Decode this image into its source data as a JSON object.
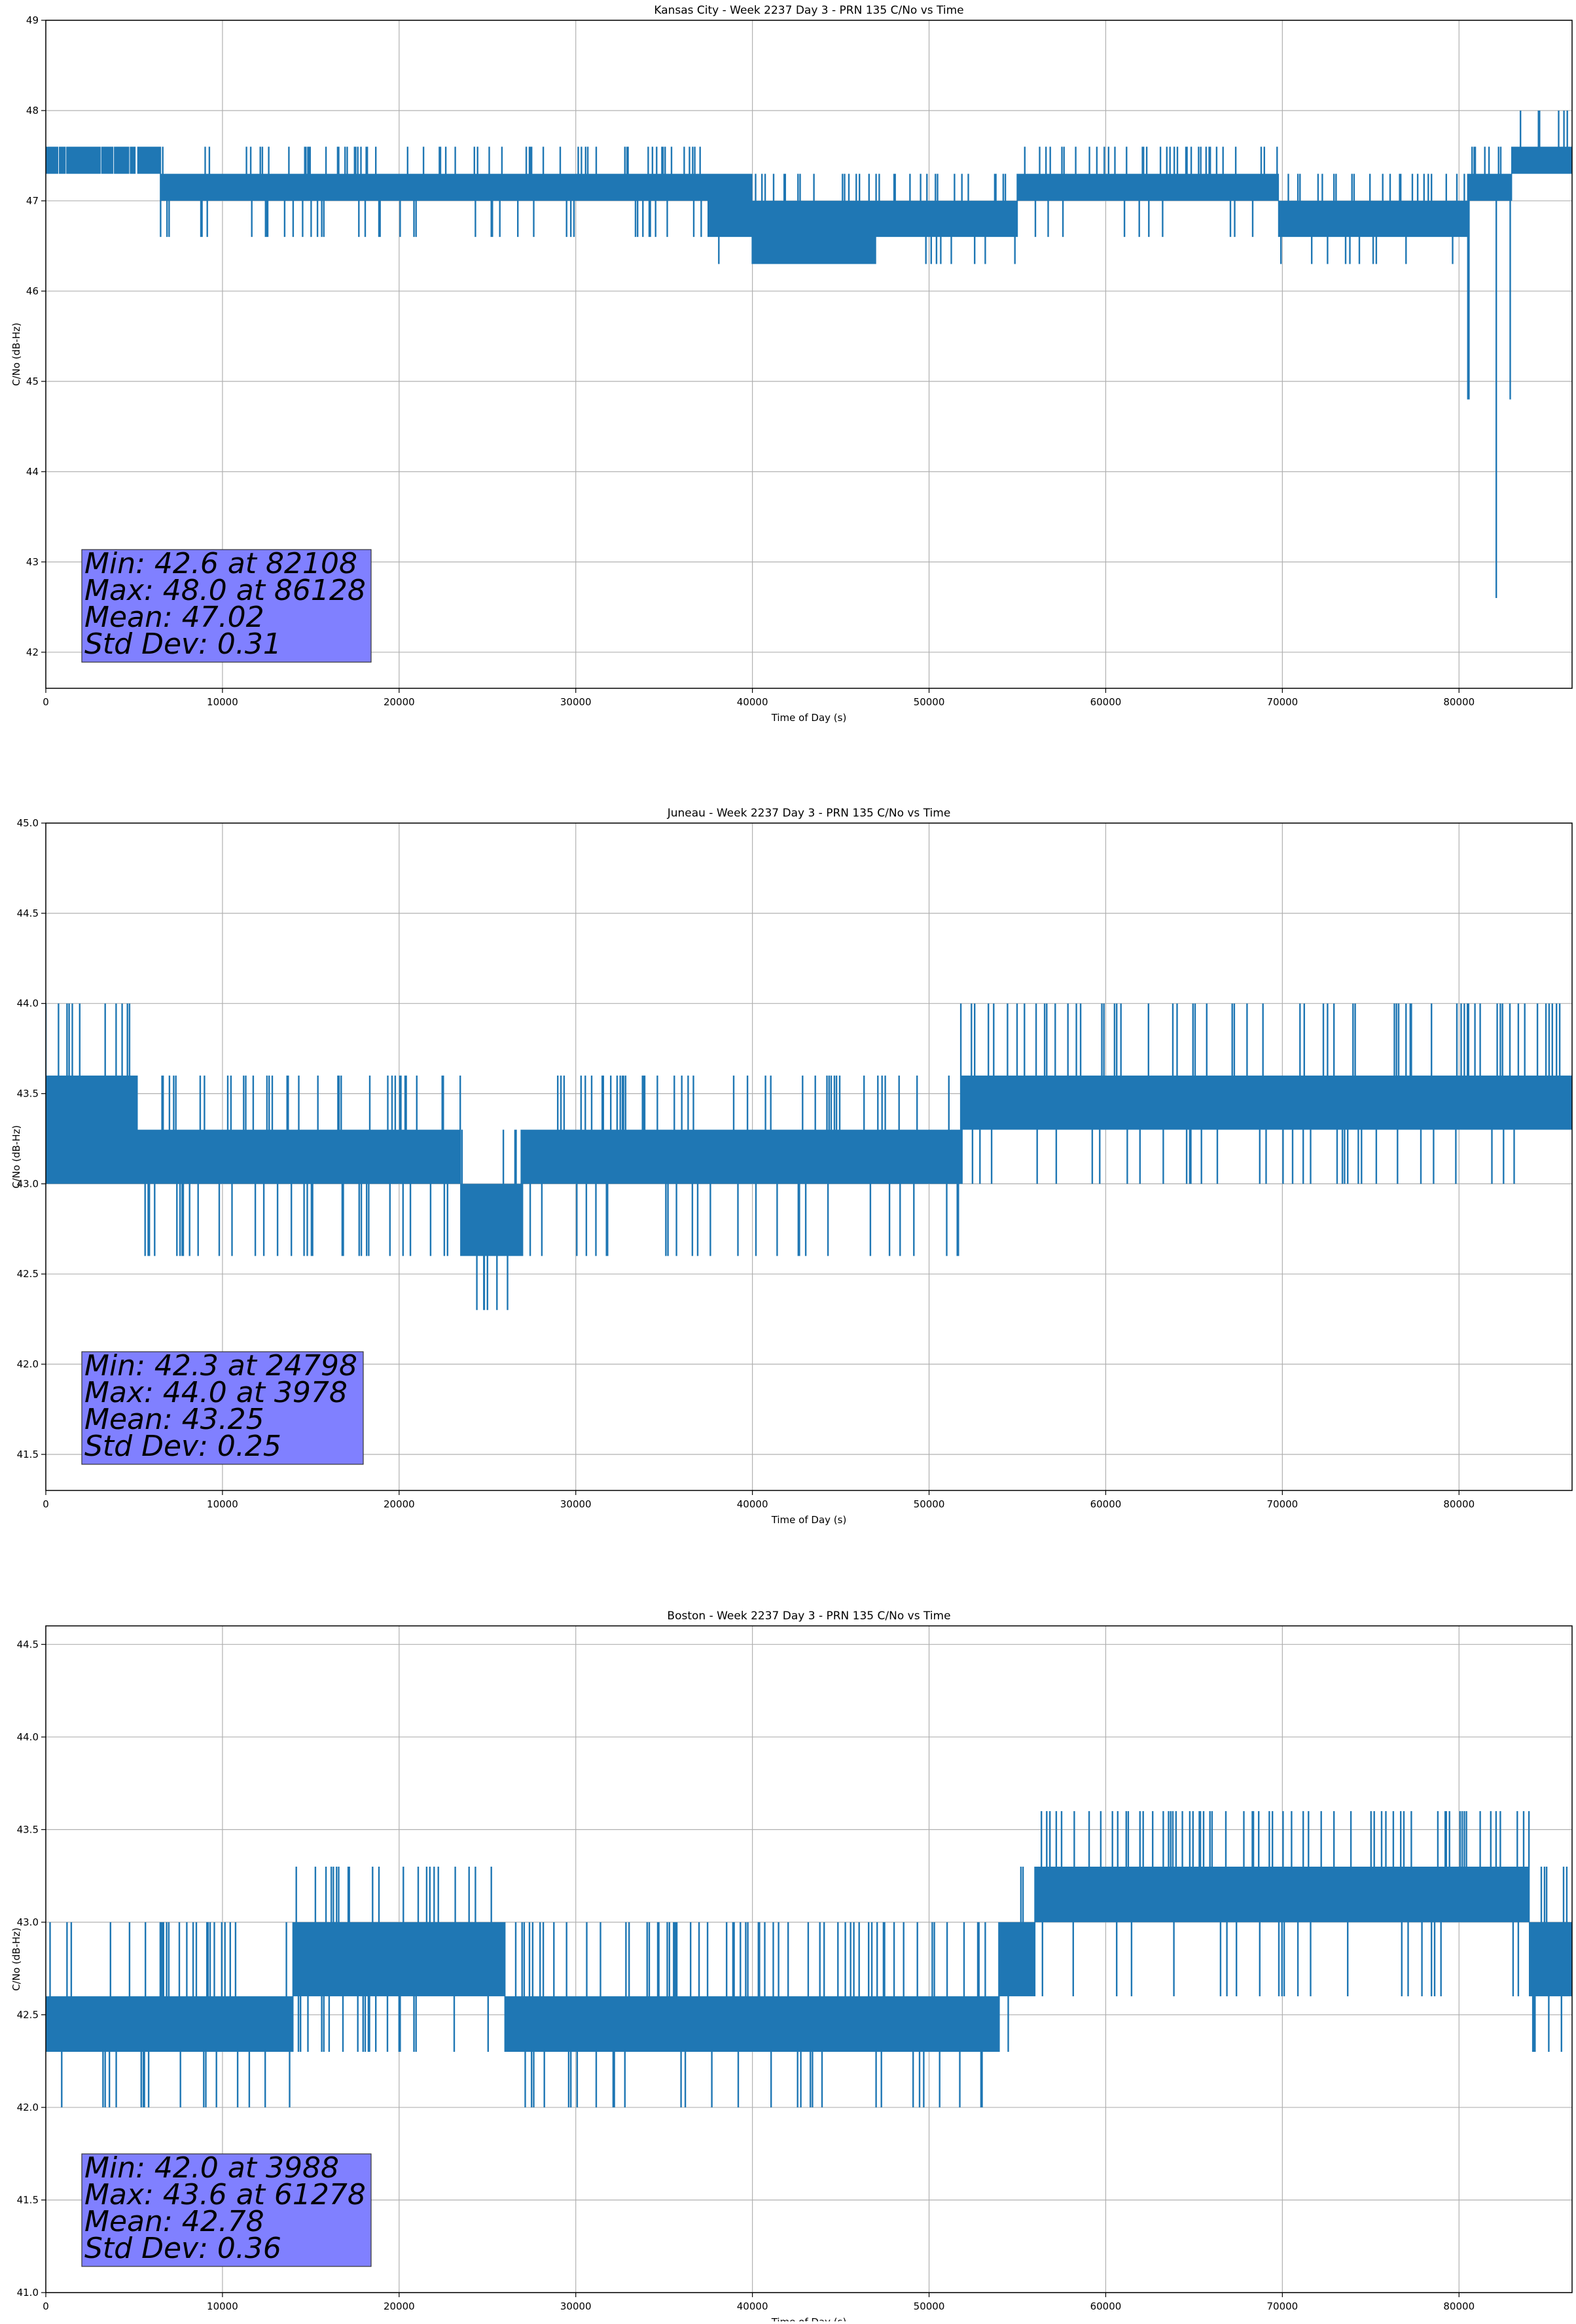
{
  "chart_data": [
    {
      "type": "line",
      "title": "Kansas City - Week 2237 Day 3 - PRN 135 C/No vs Time",
      "xlabel": "Time of Day (s)",
      "ylabel": "C/No (dB-Hz)",
      "xlim": [
        0,
        86400
      ],
      "ylim": [
        41.6,
        49.0
      ],
      "xticks": [
        0,
        10000,
        20000,
        30000,
        40000,
        50000,
        60000,
        70000,
        80000
      ],
      "yticks": [
        42,
        43,
        44,
        45,
        46,
        47,
        48,
        49
      ],
      "ytick_decimals": 0,
      "grid": true,
      "line_color": "#1f77b4",
      "stats": {
        "min": "Min: 42.6 at 82108",
        "max": "Max: 48.0 at 86128",
        "mean": "Mean: 47.02",
        "std": "Std Dev: 0.31"
      },
      "segments": [
        {
          "x": [
            0,
            6500
          ],
          "base": 47.3,
          "top": 47.6,
          "spikes": [
            47.3,
            47.6
          ],
          "dips": []
        },
        {
          "x": [
            6500,
            29000
          ],
          "base": 47.0,
          "top": 47.3,
          "spikes": [
            47.6
          ],
          "dips": [
            46.6
          ]
        },
        {
          "x": [
            29000,
            37500
          ],
          "base": 47.0,
          "top": 47.3,
          "spikes": [
            47.6
          ],
          "dips": [
            46.6
          ]
        },
        {
          "x": [
            37500,
            40000
          ],
          "base": 46.6,
          "top": 47.3,
          "spikes": [],
          "dips": [
            46.3
          ]
        },
        {
          "x": [
            40000,
            47000
          ],
          "base": 46.3,
          "top": 47.0,
          "spikes": [
            47.3
          ],
          "dips": [
            46.3
          ]
        },
        {
          "x": [
            47000,
            55000
          ],
          "base": 46.6,
          "top": 47.0,
          "spikes": [
            47.3
          ],
          "dips": [
            46.3
          ]
        },
        {
          "x": [
            55000,
            69800
          ],
          "base": 47.0,
          "top": 47.3,
          "spikes": [
            47.6
          ],
          "dips": [
            46.6
          ]
        },
        {
          "x": [
            69800,
            80500
          ],
          "base": 46.6,
          "top": 47.0,
          "spikes": [
            47.3
          ],
          "dips": [
            46.3,
            46.0
          ]
        },
        {
          "x": [
            80500,
            83000
          ],
          "base": 47.0,
          "top": 47.3,
          "spikes": [
            47.6
          ],
          "dips": [
            44.8,
            42.6
          ]
        },
        {
          "x": [
            83000,
            86400
          ],
          "base": 47.3,
          "top": 47.6,
          "spikes": [
            48.0
          ],
          "dips": []
        }
      ],
      "events": [
        {
          "x": 82108,
          "y": 42.6
        },
        {
          "x": 86128,
          "y": 48.0
        }
      ]
    },
    {
      "type": "line",
      "title": "Juneau - Week 2237 Day 3 - PRN 135 C/No vs Time",
      "xlabel": "Time of Day (s)",
      "ylabel": "C/No (dB-Hz)",
      "xlim": [
        0,
        86400
      ],
      "ylim": [
        41.3,
        45.0
      ],
      "xticks": [
        0,
        10000,
        20000,
        30000,
        40000,
        50000,
        60000,
        70000,
        80000
      ],
      "yticks": [
        41.5,
        42.0,
        42.5,
        43.0,
        43.5,
        44.0,
        44.5,
        45.0
      ],
      "ytick_decimals": 1,
      "grid": true,
      "line_color": "#1f77b4",
      "stats": {
        "min": "Min: 42.3 at 24798",
        "max": "Max: 44.0 at 3978",
        "mean": "Mean: 43.25",
        "std": "Std Dev: 0.25"
      },
      "segments": [
        {
          "x": [
            0,
            5200
          ],
          "base": 43.0,
          "top": 43.6,
          "spikes": [
            44.0
          ],
          "dips": [
            43.0
          ]
        },
        {
          "x": [
            5200,
            19800
          ],
          "base": 43.0,
          "top": 43.3,
          "spikes": [
            43.6
          ],
          "dips": [
            42.6
          ]
        },
        {
          "x": [
            19800,
            23500
          ],
          "base": 43.0,
          "top": 43.3,
          "spikes": [
            43.6
          ],
          "dips": [
            42.6
          ]
        },
        {
          "x": [
            23500,
            27000
          ],
          "base": 42.6,
          "top": 43.0,
          "spikes": [
            43.3
          ],
          "dips": [
            42.3
          ]
        },
        {
          "x": [
            27000,
            51800
          ],
          "base": 43.0,
          "top": 43.3,
          "spikes": [
            43.6
          ],
          "dips": [
            42.6
          ]
        },
        {
          "x": [
            51800,
            86400
          ],
          "base": 43.3,
          "top": 43.6,
          "spikes": [
            44.0
          ],
          "dips": [
            43.0,
            42.6
          ]
        }
      ],
      "events": [
        {
          "x": 24798,
          "y": 42.3
        },
        {
          "x": 3978,
          "y": 44.0
        }
      ]
    },
    {
      "type": "line",
      "title": "Boston - Week 2237 Day 3 - PRN 135 C/No vs Time",
      "xlabel": "Time of Day (s)",
      "ylabel": "C/No (dB-Hz)",
      "xlim": [
        0,
        86400
      ],
      "ylim": [
        41.0,
        44.6
      ],
      "xticks": [
        0,
        10000,
        20000,
        30000,
        40000,
        50000,
        60000,
        70000,
        80000
      ],
      "yticks": [
        41.0,
        41.5,
        42.0,
        42.5,
        43.0,
        43.5,
        44.0,
        44.5
      ],
      "ytick_decimals": 1,
      "grid": true,
      "line_color": "#1f77b4",
      "stats": {
        "min": "Min: 42.0 at 3988",
        "max": "Max: 43.6 at 61278",
        "mean": "Mean: 42.78",
        "std": "Std Dev: 0.36"
      },
      "segments": [
        {
          "x": [
            0,
            14000
          ],
          "base": 42.3,
          "top": 42.6,
          "spikes": [
            43.0
          ],
          "dips": [
            42.0
          ]
        },
        {
          "x": [
            14000,
            25500
          ],
          "base": 42.6,
          "top": 43.0,
          "spikes": [
            43.3
          ],
          "dips": [
            42.3
          ]
        },
        {
          "x": [
            25500,
            26000
          ],
          "base": 42.6,
          "top": 43.0,
          "spikes": [],
          "dips": []
        },
        {
          "x": [
            26000,
            54000
          ],
          "base": 42.3,
          "top": 42.6,
          "spikes": [
            43.0
          ],
          "dips": [
            42.0
          ]
        },
        {
          "x": [
            54000,
            56000
          ],
          "base": 42.6,
          "top": 43.0,
          "spikes": [
            43.3
          ],
          "dips": [
            42.3
          ]
        },
        {
          "x": [
            56000,
            84000
          ],
          "base": 43.0,
          "top": 43.3,
          "spikes": [
            43.6
          ],
          "dips": [
            42.6,
            42.0
          ]
        },
        {
          "x": [
            84000,
            86400
          ],
          "base": 42.6,
          "top": 43.0,
          "spikes": [
            43.3
          ],
          "dips": [
            42.3
          ]
        }
      ],
      "events": [
        {
          "x": 3988,
          "y": 42.0
        },
        {
          "x": 61278,
          "y": 43.6
        }
      ]
    }
  ]
}
